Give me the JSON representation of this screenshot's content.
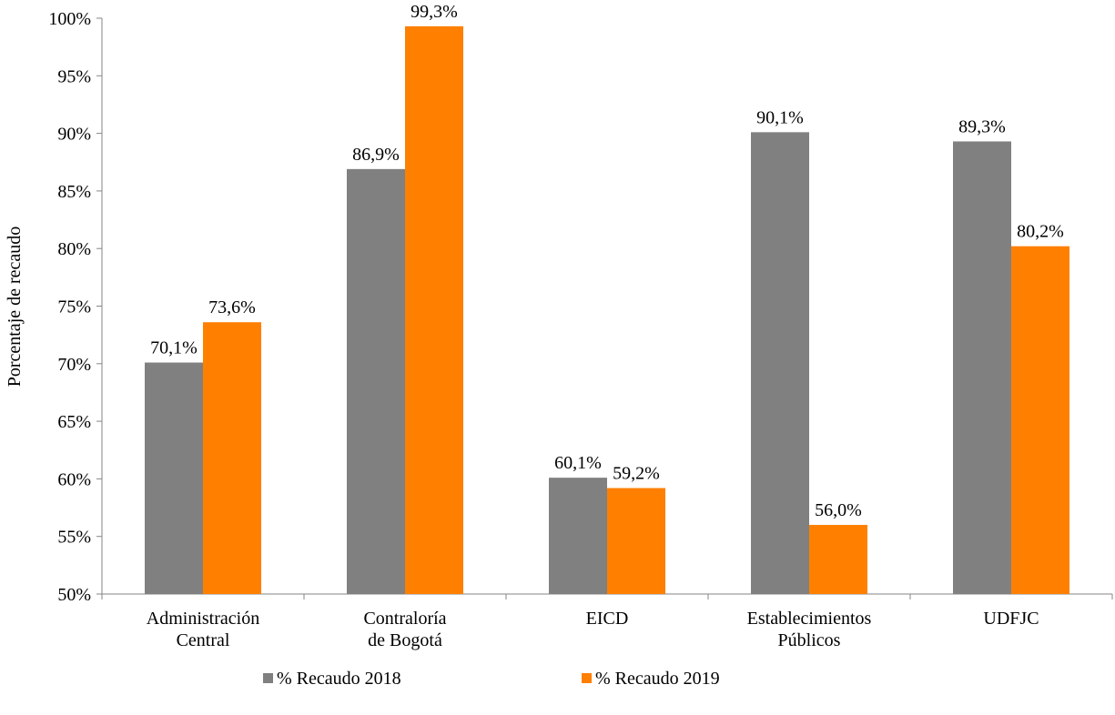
{
  "chart_data": {
    "type": "bar",
    "categories": [
      [
        "Administración",
        "Central"
      ],
      [
        "Contraloría",
        "de Bogotá"
      ],
      [
        "EICD"
      ],
      [
        "Establecimientos",
        "Públicos"
      ],
      [
        "UDFJC"
      ]
    ],
    "series": [
      {
        "name": "% Recaudo 2018",
        "color": "#808080",
        "values": [
          70.1,
          86.9,
          60.1,
          90.1,
          89.3
        ],
        "labels": [
          "70,1%",
          "86,9%",
          "60,1%",
          "90,1%",
          "89,3%"
        ]
      },
      {
        "name": "% Recaudo 2019",
        "color": "#FF8000",
        "values": [
          73.6,
          99.3,
          59.2,
          56.0,
          80.2
        ],
        "labels": [
          "73,6%",
          "99,3%",
          "59,2%",
          "56,0%",
          "80,2%"
        ]
      }
    ],
    "ylabel": "Porcentaje de recaudo",
    "ylim": [
      50,
      100
    ],
    "yticks": [
      50,
      55,
      60,
      65,
      70,
      75,
      80,
      85,
      90,
      95,
      100
    ],
    "ytick_labels": [
      "50%",
      "55%",
      "60%",
      "65%",
      "70%",
      "75%",
      "80%",
      "85%",
      "90%",
      "95%",
      "100%"
    ],
    "grid": false,
    "legend_position": "bottom"
  }
}
